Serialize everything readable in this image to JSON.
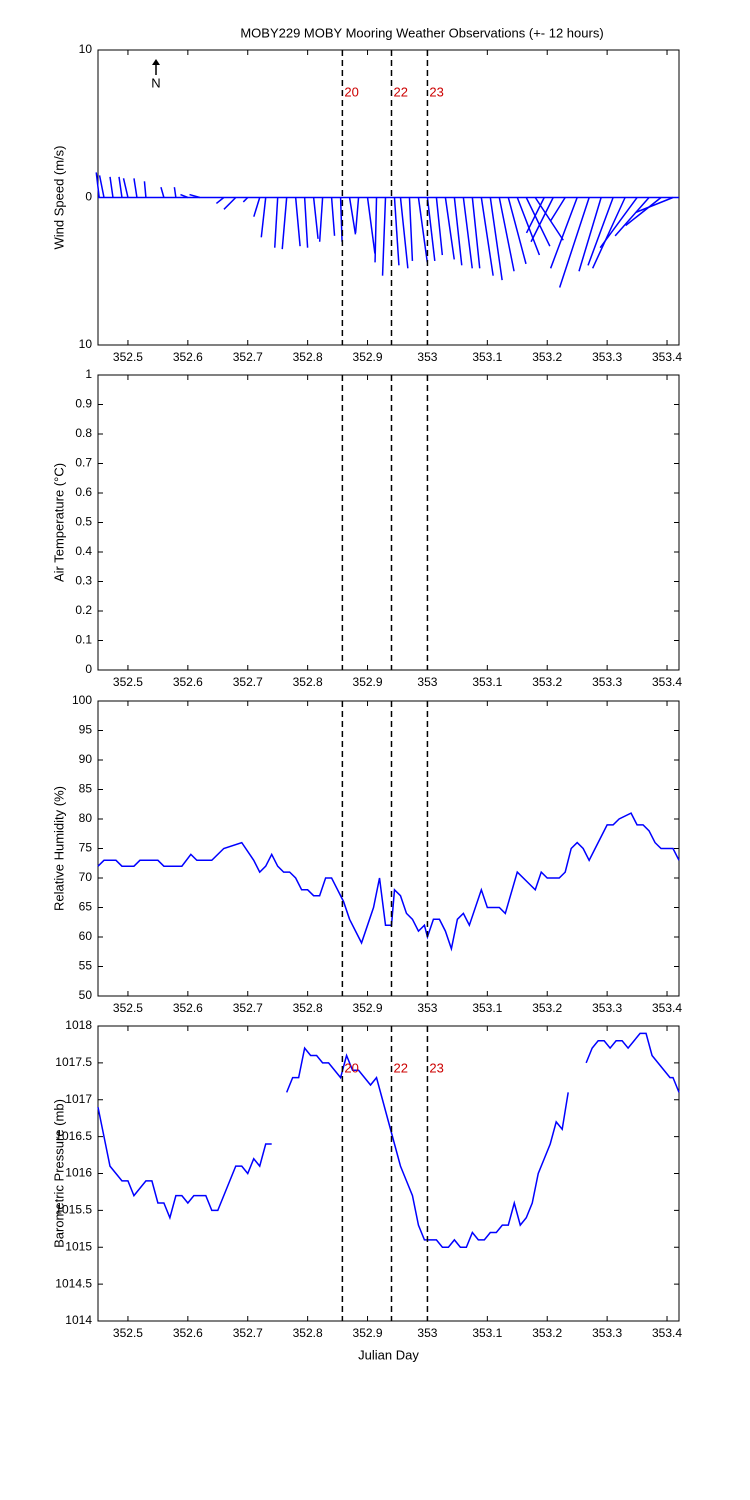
{
  "chart_data": [
    {
      "type": "quiver",
      "title": "MOBY229 MOBY Mooring Weather Observations (+- 12 hours)",
      "ylabel": "Wind Speed (m/s)",
      "north_label": "N",
      "xlim": [
        352.45,
        353.42
      ],
      "xticks": [
        352.5,
        352.6,
        352.7,
        352.8,
        352.9,
        353,
        353.1,
        353.2,
        353.3,
        353.4
      ],
      "ylim": [
        -10,
        10
      ],
      "yticks": [
        {
          "value": -10,
          "label": "10"
        },
        0,
        10
      ],
      "color": "#0000ff",
      "markers": [
        352.858,
        352.94,
        353.0
      ],
      "marker_labels": [
        "20",
        "22",
        "23"
      ],
      "marker_label_color": "#cc0000",
      "x": [
        352.452,
        352.46,
        352.475,
        352.49,
        352.5,
        352.515,
        352.53,
        352.56,
        352.58,
        352.6,
        352.62,
        352.66,
        352.68,
        352.7,
        352.72,
        352.73,
        352.75,
        352.765,
        352.78,
        352.795,
        352.81,
        352.825,
        352.84,
        352.855,
        352.87,
        352.885,
        352.9,
        352.915,
        352.93,
        352.945,
        352.955,
        352.97,
        352.985,
        353.0,
        353.015,
        353.03,
        353.045,
        353.06,
        353.075,
        353.09,
        353.105,
        353.12,
        353.135,
        353.15,
        353.165,
        353.18,
        353.195,
        353.21,
        353.23,
        353.25,
        353.27,
        353.29,
        353.31,
        353.33,
        353.35,
        353.37,
        353.39,
        353.41
      ],
      "u": [
        -0.2,
        -0.3,
        -0.2,
        -0.2,
        -0.3,
        -0.2,
        -0.1,
        -0.2,
        -0.1,
        -0.5,
        -0.7,
        -0.5,
        -0.8,
        -0.3,
        -0.4,
        -0.3,
        -0.2,
        -0.3,
        0.3,
        0.2,
        0.3,
        -0.2,
        0.2,
        0.1,
        0.4,
        -0.2,
        0.5,
        -0.1,
        -0.2,
        0.3,
        0.5,
        0.2,
        0.6,
        0.5,
        0.4,
        0.6,
        0.5,
        0.6,
        0.5,
        0.8,
        0.8,
        1.0,
        1.2,
        1.5,
        1.6,
        1.9,
        -1.2,
        -1.5,
        -1.0,
        -1.8,
        -2.0,
        -1.5,
        -1.7,
        -2.2,
        -2.5,
        -2.3,
        -2.4,
        -2.5
      ],
      "v": [
        1.7,
        1.5,
        1.4,
        1.4,
        1.3,
        1.3,
        1.1,
        0.7,
        0.7,
        0.2,
        0.2,
        -0.4,
        -0.8,
        -0.3,
        -1.3,
        -2.7,
        -3.4,
        -3.5,
        -3.3,
        -3.4,
        -2.8,
        -3.0,
        -2.6,
        -3.0,
        -2.5,
        -2.4,
        -3.8,
        -4.4,
        -5.3,
        -4.6,
        -4.8,
        -4.3,
        -4.4,
        -4.3,
        -3.9,
        -4.2,
        -4.6,
        -4.8,
        -4.8,
        -5.3,
        -5.6,
        -5.0,
        -4.5,
        -3.9,
        -3.3,
        -2.9,
        -2.4,
        -3.0,
        -1.6,
        -4.8,
        -6.1,
        -5.0,
        -4.6,
        -4.8,
        -3.4,
        -2.6,
        -1.9,
        -1.0
      ]
    },
    {
      "type": "line",
      "ylabel": "Air Temperature (°C)",
      "xlim": [
        352.45,
        353.42
      ],
      "xticks": [
        352.5,
        352.6,
        352.7,
        352.8,
        352.9,
        353,
        353.1,
        353.2,
        353.3,
        353.4
      ],
      "ylim": [
        0,
        1
      ],
      "yticks": [
        0,
        0.1,
        0.2,
        0.3,
        0.4,
        0.5,
        0.6,
        0.7,
        0.8,
        0.9,
        1
      ],
      "markers": [
        352.858,
        352.94,
        353.0
      ]
    },
    {
      "type": "line",
      "ylabel": "Relative Humidity (%)",
      "xlim": [
        352.45,
        353.42
      ],
      "xticks": [
        352.5,
        352.6,
        352.7,
        352.8,
        352.9,
        353,
        353.1,
        353.2,
        353.3,
        353.4
      ],
      "ylim": [
        50,
        100
      ],
      "yticks": [
        50,
        55,
        60,
        65,
        70,
        75,
        80,
        85,
        90,
        95,
        100
      ],
      "color": "#0000ff",
      "markers": [
        352.858,
        352.94,
        353.0
      ],
      "x": [
        352.45,
        352.46,
        352.48,
        352.49,
        352.51,
        352.52,
        352.55,
        352.56,
        352.59,
        352.605,
        352.615,
        352.64,
        352.66,
        352.69,
        352.71,
        352.72,
        352.73,
        352.74,
        352.75,
        352.76,
        352.77,
        352.78,
        352.79,
        352.8,
        352.81,
        352.82,
        352.83,
        352.84,
        352.86,
        352.87,
        352.88,
        352.89,
        352.91,
        352.92,
        352.93,
        352.94,
        352.945,
        352.955,
        352.965,
        352.975,
        352.985,
        352.995,
        353.0,
        353.01,
        353.02,
        353.03,
        353.04,
        353.05,
        353.06,
        353.07,
        353.08,
        353.09,
        353.1,
        353.12,
        353.13,
        353.15,
        353.17,
        353.18,
        353.19,
        353.2,
        353.22,
        353.23,
        353.24,
        353.25,
        353.26,
        353.27,
        353.28,
        353.3,
        353.31,
        353.32,
        353.34,
        353.35,
        353.36,
        353.37,
        353.38,
        353.39,
        353.41,
        353.42
      ],
      "values": [
        72,
        73,
        73,
        72,
        72,
        73,
        73,
        72,
        72,
        74,
        73,
        73,
        75,
        76,
        73,
        71,
        72,
        74,
        72,
        71,
        71,
        70,
        68,
        68,
        67,
        67,
        70,
        70,
        66,
        63,
        61,
        59,
        65,
        70,
        62,
        62,
        68,
        67,
        64,
        63,
        61,
        62,
        60,
        63,
        63,
        61,
        58,
        63,
        64,
        62,
        65,
        68,
        65,
        65,
        64,
        71,
        69,
        68,
        71,
        70,
        70,
        71,
        75,
        76,
        75,
        73,
        75,
        79,
        79,
        80,
        81,
        79,
        79,
        78,
        76,
        75,
        75,
        73
      ]
    },
    {
      "type": "line",
      "ylabel": "Barometric Pressure (mb)",
      "xlabel": "Julian Day",
      "xlim": [
        352.45,
        353.42
      ],
      "xticks": [
        352.5,
        352.6,
        352.7,
        352.8,
        352.9,
        353,
        353.1,
        353.2,
        353.3,
        353.4
      ],
      "ylim": [
        1014,
        1018
      ],
      "yticks": [
        1014,
        1014.5,
        1015,
        1015.5,
        1016,
        1016.5,
        1017,
        1017.5,
        1018
      ],
      "color": "#0000ff",
      "markers": [
        352.858,
        352.94,
        353.0
      ],
      "marker_labels": [
        "20",
        "22",
        "23"
      ],
      "marker_label_color": "#cc0000",
      "x": [
        352.45,
        352.46,
        352.47,
        352.48,
        352.49,
        352.5,
        352.51,
        352.52,
        352.53,
        352.54,
        352.55,
        352.56,
        352.57,
        352.58,
        352.59,
        352.6,
        352.61,
        352.62,
        352.63,
        352.64,
        352.65,
        352.66,
        352.67,
        352.68,
        352.69,
        352.7,
        352.71,
        352.72,
        352.73,
        352.74,
        352.755,
        352.765,
        352.775,
        352.785,
        352.795,
        352.805,
        352.815,
        352.825,
        352.835,
        352.845,
        352.855,
        352.865,
        352.875,
        352.885,
        352.895,
        352.905,
        352.915,
        352.925,
        352.935,
        352.945,
        352.955,
        352.965,
        352.975,
        352.985,
        352.995,
        353.005,
        353.015,
        353.025,
        353.035,
        353.045,
        353.055,
        353.065,
        353.075,
        353.085,
        353.095,
        353.105,
        353.115,
        353.125,
        353.135,
        353.145,
        353.155,
        353.165,
        353.175,
        353.185,
        353.195,
        353.205,
        353.215,
        353.225,
        353.235,
        353.25,
        353.265,
        353.275,
        353.285,
        353.295,
        353.305,
        353.315,
        353.325,
        353.335,
        353.345,
        353.355,
        353.365,
        353.375,
        353.385,
        353.395,
        353.405,
        353.41,
        353.42
      ],
      "values": [
        1016.9,
        1016.5,
        1016.1,
        1016.0,
        1015.9,
        1015.9,
        1015.7,
        1015.8,
        1015.9,
        1015.9,
        1015.6,
        1015.6,
        1015.4,
        1015.7,
        1015.7,
        1015.6,
        1015.7,
        1015.7,
        1015.7,
        1015.5,
        1015.5,
        1015.7,
        1015.9,
        1016.1,
        1016.1,
        1016.0,
        1016.2,
        1016.1,
        1016.4,
        1016.4,
        null,
        1017.1,
        1017.3,
        1017.3,
        1017.7,
        1017.6,
        1017.6,
        1017.5,
        1017.5,
        1017.4,
        1017.3,
        1017.6,
        1017.4,
        1017.4,
        1017.3,
        1017.2,
        1017.3,
        1017.0,
        1016.7,
        1016.4,
        1016.1,
        1015.9,
        1015.7,
        1015.3,
        1015.1,
        1015.1,
        1015.1,
        1015.0,
        1015.0,
        1015.1,
        1015.0,
        1015.0,
        1015.2,
        1015.1,
        1015.1,
        1015.2,
        1015.2,
        1015.3,
        1015.3,
        1015.6,
        1015.3,
        1015.4,
        1015.6,
        1016.0,
        1016.2,
        1016.4,
        1016.7,
        1016.6,
        1017.1,
        null,
        1017.5,
        1017.7,
        1017.8,
        1017.8,
        1017.7,
        1017.8,
        1017.8,
        1017.7,
        1017.8,
        1017.9,
        1017.9,
        1017.6,
        1017.5,
        1017.4,
        1017.3,
        1017.3,
        1017.1
      ]
    }
  ]
}
